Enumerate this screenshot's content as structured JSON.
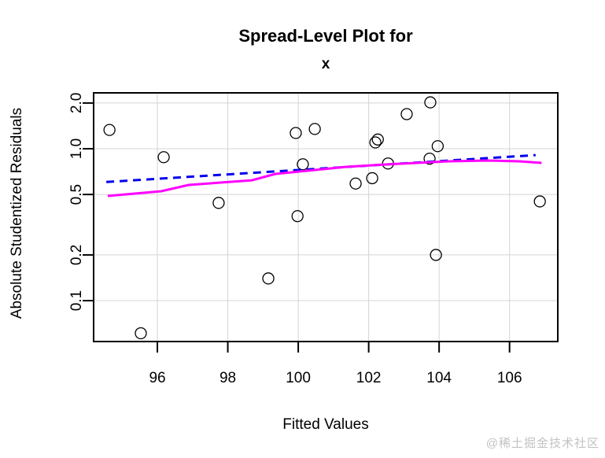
{
  "watermark": {
    "text": "@稀土掘金技术社区"
  },
  "chart_data": {
    "type": "scatter",
    "title": "Spread-Level Plot for",
    "subtitle": "x",
    "xlabel": "Fitted Values",
    "ylabel": "Absolute Studentized Residuals",
    "x_scale": "linear",
    "y_scale": "log",
    "xlim": [
      94.19,
      107.37
    ],
    "ylim": [
      0.0538,
      2.333
    ],
    "x_ticks": [
      96,
      98,
      100,
      102,
      104,
      106
    ],
    "x_tick_labels": [
      "96",
      "98",
      "100",
      "102",
      "104",
      "106"
    ],
    "y_ticks": [
      2.0,
      1.0,
      0.5,
      0.2,
      0.1
    ],
    "y_tick_labels": [
      "2.0",
      "1.0",
      "0.5",
      "0.2",
      "0.1"
    ],
    "grid": true,
    "legend": "none",
    "marker": {
      "shape": "open-circle",
      "radius": 7,
      "stroke": "#000000"
    },
    "points": [
      {
        "x": 94.64,
        "y": 1.33
      },
      {
        "x": 95.53,
        "y": 0.061
      },
      {
        "x": 96.18,
        "y": 0.88
      },
      {
        "x": 97.74,
        "y": 0.44
      },
      {
        "x": 99.15,
        "y": 0.14
      },
      {
        "x": 99.93,
        "y": 1.27
      },
      {
        "x": 99.98,
        "y": 0.36
      },
      {
        "x": 100.13,
        "y": 0.79
      },
      {
        "x": 100.47,
        "y": 1.35
      },
      {
        "x": 101.63,
        "y": 0.59
      },
      {
        "x": 102.1,
        "y": 0.64
      },
      {
        "x": 102.19,
        "y": 1.1
      },
      {
        "x": 102.26,
        "y": 1.15
      },
      {
        "x": 102.55,
        "y": 0.8
      },
      {
        "x": 103.08,
        "y": 1.69
      },
      {
        "x": 103.73,
        "y": 0.86
      },
      {
        "x": 103.75,
        "y": 2.02
      },
      {
        "x": 103.91,
        "y": 0.2
      },
      {
        "x": 103.96,
        "y": 1.04
      },
      {
        "x": 106.86,
        "y": 0.45
      }
    ],
    "series": [
      {
        "name": "smooth-spread-line",
        "style": "solid",
        "color": "#ff00ff",
        "width": 3,
        "points": [
          {
            "x": 94.59,
            "y": 0.489
          },
          {
            "x": 95.33,
            "y": 0.506
          },
          {
            "x": 96.11,
            "y": 0.525
          },
          {
            "x": 96.89,
            "y": 0.578
          },
          {
            "x": 97.79,
            "y": 0.599
          },
          {
            "x": 98.68,
            "y": 0.62
          },
          {
            "x": 99.35,
            "y": 0.683
          },
          {
            "x": 100.25,
            "y": 0.716
          },
          {
            "x": 101.36,
            "y": 0.76
          },
          {
            "x": 102.48,
            "y": 0.788
          },
          {
            "x": 103.37,
            "y": 0.807
          },
          {
            "x": 104.27,
            "y": 0.826
          },
          {
            "x": 105.39,
            "y": 0.836
          },
          {
            "x": 106.28,
            "y": 0.826
          },
          {
            "x": 106.91,
            "y": 0.807
          }
        ]
      },
      {
        "name": "power-fit-line",
        "style": "dashed",
        "color": "#0000ee",
        "width": 3,
        "points": [
          {
            "x": 94.55,
            "y": 0.604
          },
          {
            "x": 106.74,
            "y": 0.908
          }
        ]
      }
    ],
    "colors": {
      "background": "#ffffff",
      "grid": "#d4d4d4",
      "axis": "#000000",
      "point_stroke": "#000000"
    }
  }
}
